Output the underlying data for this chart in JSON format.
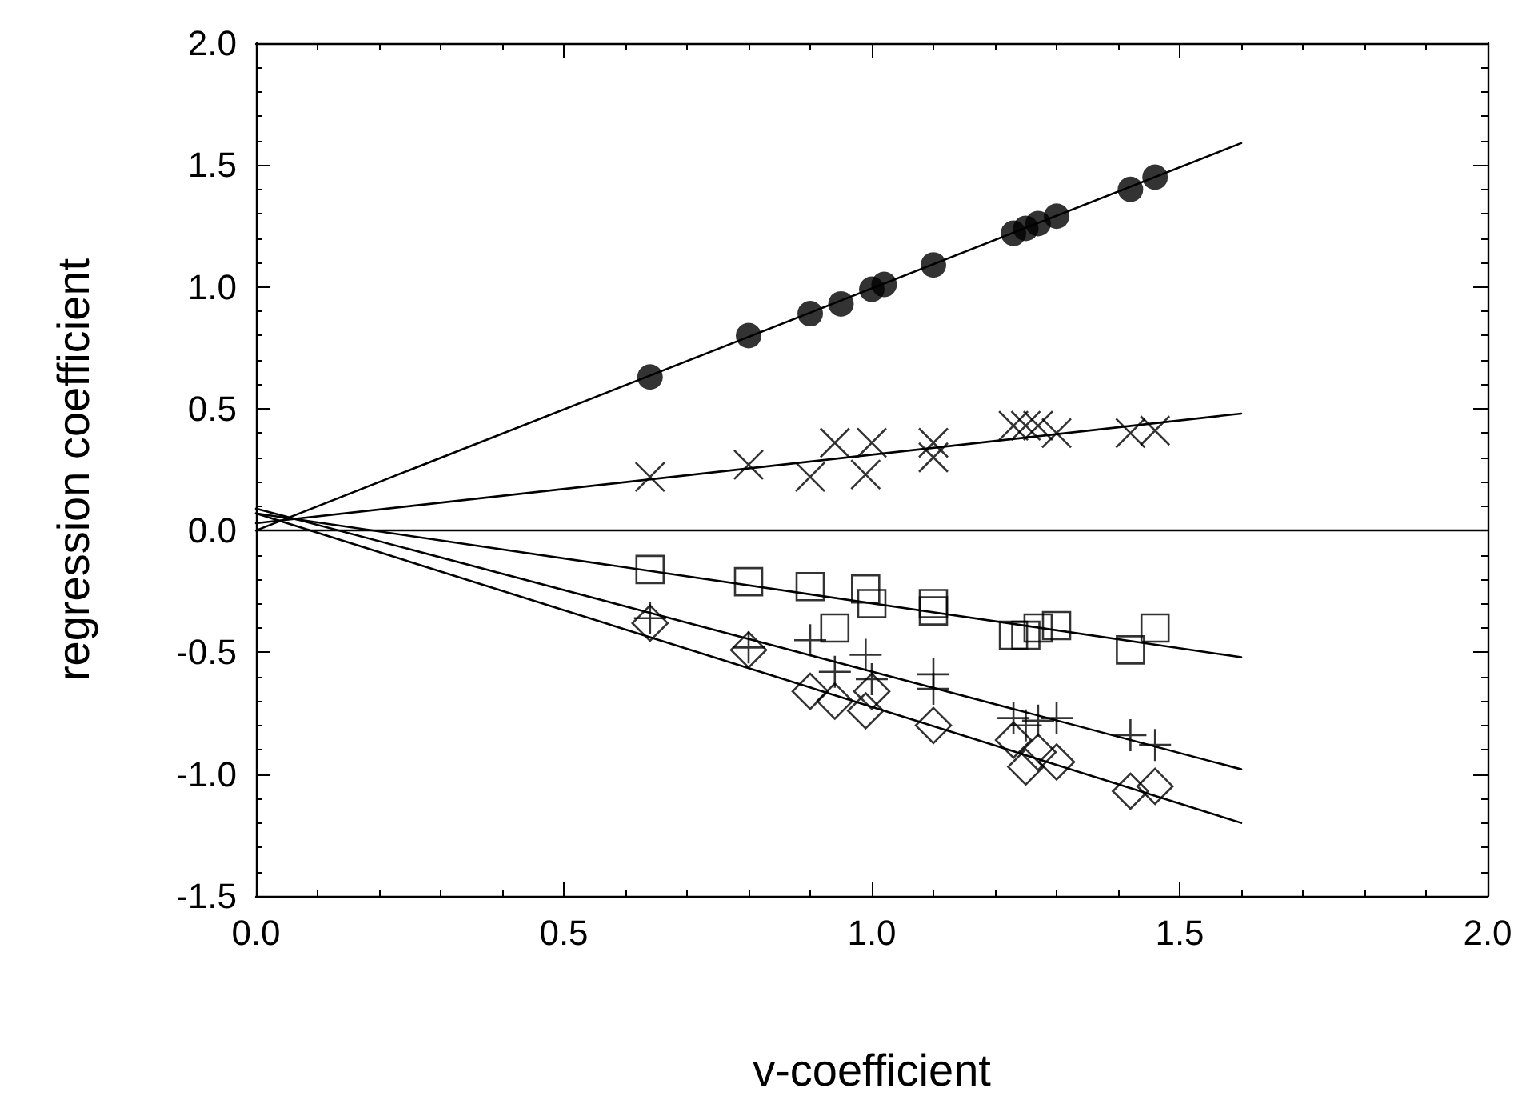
{
  "chart_data": {
    "type": "scatter",
    "xlabel": "v-coefficient",
    "ylabel": "regression coefficient",
    "xlim": [
      0,
      2
    ],
    "ylim": [
      -1.5,
      2
    ],
    "xticks": [
      {
        "value": 0,
        "label": "0.0"
      },
      {
        "value": 0.5,
        "label": "0.5"
      },
      {
        "value": 1,
        "label": "1.0"
      },
      {
        "value": 1.5,
        "label": "1.5"
      },
      {
        "value": 2,
        "label": "2.0"
      }
    ],
    "yticks": [
      {
        "value": -1.5,
        "label": "-1.5"
      },
      {
        "value": -1,
        "label": "-1.0"
      },
      {
        "value": -0.5,
        "label": "-0.5"
      },
      {
        "value": 0,
        "label": "0.0"
      },
      {
        "value": 0.5,
        "label": "0.5"
      },
      {
        "value": 1,
        "label": "1.0"
      },
      {
        "value": 1.5,
        "label": "1.5"
      },
      {
        "value": 2,
        "label": "2.0"
      }
    ],
    "grid": false,
    "ref_lines": [
      {
        "axis": "y",
        "value": 0,
        "color": "#000000"
      }
    ],
    "series": [
      {
        "marker": "circle",
        "color": "#000000",
        "x": [
          0.64,
          0.8,
          0.9,
          0.95,
          1.0,
          1.02,
          1.1,
          1.23,
          1.25,
          1.27,
          1.3,
          1.42,
          1.46
        ],
        "values": [
          0.63,
          0.8,
          0.89,
          0.93,
          0.99,
          1.01,
          1.09,
          1.22,
          1.24,
          1.26,
          1.29,
          1.4,
          1.45
        ]
      },
      {
        "marker": "cross",
        "color": "#000000",
        "x": [
          0.64,
          0.8,
          0.9,
          0.94,
          0.99,
          1.0,
          1.1,
          1.1,
          1.23,
          1.25,
          1.27,
          1.3,
          1.42,
          1.46
        ],
        "values": [
          0.22,
          0.27,
          0.22,
          0.36,
          0.23,
          0.36,
          0.3,
          0.36,
          0.43,
          0.43,
          0.43,
          0.4,
          0.4,
          0.41
        ]
      },
      {
        "marker": "square",
        "color": "#000000",
        "x": [
          0.64,
          0.8,
          0.9,
          0.94,
          0.99,
          1.0,
          1.1,
          1.1,
          1.23,
          1.25,
          1.27,
          1.3,
          1.42,
          1.46
        ],
        "values": [
          -0.16,
          -0.21,
          -0.23,
          -0.4,
          -0.24,
          -0.3,
          -0.3,
          -0.33,
          -0.43,
          -0.43,
          -0.4,
          -0.39,
          -0.49,
          -0.4
        ]
      },
      {
        "marker": "plus",
        "color": "#000000",
        "x": [
          0.64,
          0.8,
          0.9,
          0.94,
          0.99,
          1.0,
          1.1,
          1.1,
          1.23,
          1.25,
          1.27,
          1.3,
          1.42,
          1.46
        ],
        "values": [
          -0.36,
          -0.48,
          -0.45,
          -0.58,
          -0.51,
          -0.61,
          -0.59,
          -0.65,
          -0.77,
          -0.8,
          -0.78,
          -0.77,
          -0.84,
          -0.88
        ]
      },
      {
        "marker": "diamond",
        "color": "#000000",
        "x": [
          0.64,
          0.8,
          0.9,
          0.94,
          0.99,
          1.0,
          1.1,
          1.23,
          1.25,
          1.27,
          1.3,
          1.42,
          1.46
        ],
        "values": [
          -0.38,
          -0.49,
          -0.66,
          -0.7,
          -0.74,
          -0.66,
          -0.8,
          -0.86,
          -0.97,
          -0.91,
          -0.95,
          -1.07,
          -1.05
        ]
      },
      {
        "type": "line",
        "marker": "none",
        "color": "#000000",
        "x": [
          0,
          1.6
        ],
        "values": [
          0.0,
          1.59
        ]
      },
      {
        "type": "line",
        "marker": "none",
        "color": "#000000",
        "x": [
          0,
          1.6
        ],
        "values": [
          0.03,
          0.48
        ]
      },
      {
        "type": "line",
        "marker": "none",
        "color": "#000000",
        "x": [
          0,
          1.6
        ],
        "values": [
          0.07,
          -0.52
        ]
      },
      {
        "type": "line",
        "marker": "none",
        "color": "#000000",
        "x": [
          0,
          1.6
        ],
        "values": [
          0.09,
          -0.98
        ]
      },
      {
        "type": "line",
        "marker": "none",
        "color": "#000000",
        "x": [
          0,
          1.6
        ],
        "values": [
          0.07,
          -1.2
        ]
      }
    ]
  }
}
